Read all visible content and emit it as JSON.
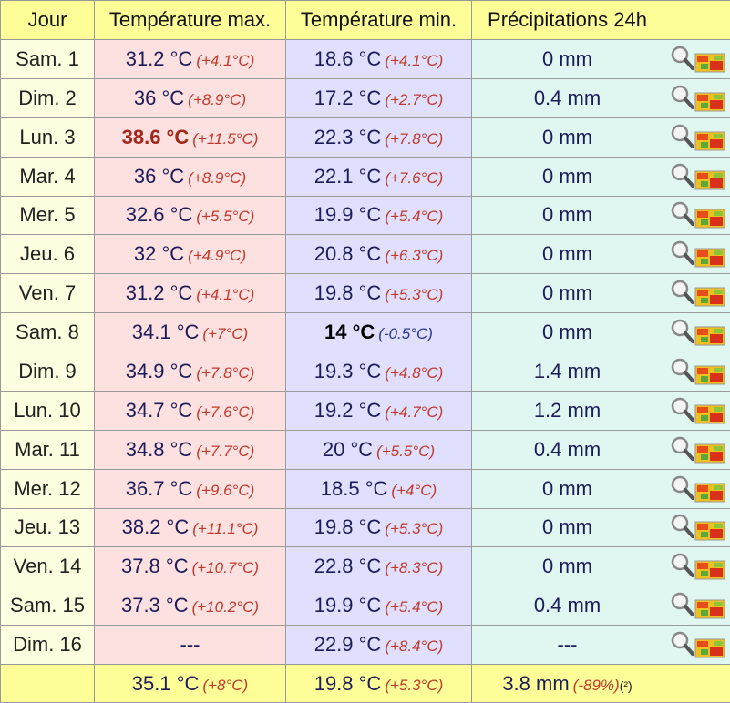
{
  "table": {
    "header": {
      "day": "Jour",
      "max": "Température max.",
      "min": "Température min.",
      "precip": "Précipitations 24h"
    },
    "rows": [
      {
        "day": "Sam. 1",
        "max": {
          "text": "31.2 °C",
          "note": "(+4.1°C)"
        },
        "min": {
          "text": "18.6 °C",
          "note": "(+4.1°C)"
        },
        "precip": "0 mm"
      },
      {
        "day": "Dim. 2",
        "max": {
          "text": "36 °C",
          "note": "(+8.9°C)"
        },
        "min": {
          "text": "17.2 °C",
          "note": "(+2.7°C)"
        },
        "precip": "0.4 mm"
      },
      {
        "day": "Lun. 3",
        "max": {
          "text": "38.6 °C",
          "note": "(+11.5°C)",
          "bold": true,
          "color": "#a3281c"
        },
        "min": {
          "text": "22.3 °C",
          "note": "(+7.8°C)"
        },
        "precip": "0 mm"
      },
      {
        "day": "Mar. 4",
        "max": {
          "text": "36 °C",
          "note": "(+8.9°C)"
        },
        "min": {
          "text": "22.1 °C",
          "note": "(+7.6°C)"
        },
        "precip": "0 mm"
      },
      {
        "day": "Mer. 5",
        "max": {
          "text": "32.6 °C",
          "note": "(+5.5°C)"
        },
        "min": {
          "text": "19.9 °C",
          "note": "(+5.4°C)"
        },
        "precip": "0 mm"
      },
      {
        "day": "Jeu. 6",
        "max": {
          "text": "32 °C",
          "note": "(+4.9°C)"
        },
        "min": {
          "text": "20.8 °C",
          "note": "(+6.3°C)"
        },
        "precip": "0 mm"
      },
      {
        "day": "Ven. 7",
        "max": {
          "text": "31.2 °C",
          "note": "(+4.1°C)"
        },
        "min": {
          "text": "19.8 °C",
          "note": "(+5.3°C)"
        },
        "precip": "0 mm"
      },
      {
        "day": "Sam. 8",
        "max": {
          "text": "34.1 °C",
          "note": "(+7°C)"
        },
        "min": {
          "text": "14 °C",
          "note": "(-0.5°C)",
          "bold": true,
          "color": "#000000",
          "note_color": "#2b3590"
        },
        "precip": "0 mm"
      },
      {
        "day": "Dim. 9",
        "max": {
          "text": "34.9 °C",
          "note": "(+7.8°C)"
        },
        "min": {
          "text": "19.3 °C",
          "note": "(+4.8°C)"
        },
        "precip": "1.4 mm"
      },
      {
        "day": "Lun. 10",
        "max": {
          "text": "34.7 °C",
          "note": "(+7.6°C)"
        },
        "min": {
          "text": "19.2 °C",
          "note": "(+4.7°C)"
        },
        "precip": "1.2 mm"
      },
      {
        "day": "Mar. 11",
        "max": {
          "text": "34.8 °C",
          "note": "(+7.7°C)"
        },
        "min": {
          "text": "20 °C",
          "note": "(+5.5°C)"
        },
        "precip": "0.4 mm"
      },
      {
        "day": "Mer. 12",
        "max": {
          "text": "36.7 °C",
          "note": "(+9.6°C)"
        },
        "min": {
          "text": "18.5 °C",
          "note": "(+4°C)"
        },
        "precip": "0 mm"
      },
      {
        "day": "Jeu. 13",
        "max": {
          "text": "38.2 °C",
          "note": "(+11.1°C)"
        },
        "min": {
          "text": "19.8 °C",
          "note": "(+5.3°C)"
        },
        "precip": "0 mm"
      },
      {
        "day": "Ven. 14",
        "max": {
          "text": "37.8 °C",
          "note": "(+10.7°C)"
        },
        "min": {
          "text": "22.8 °C",
          "note": "(+8.3°C)"
        },
        "precip": "0 mm"
      },
      {
        "day": "Sam. 15",
        "max": {
          "text": "37.3 °C",
          "note": "(+10.2°C)"
        },
        "min": {
          "text": "19.9 °C",
          "note": "(+5.4°C)"
        },
        "precip": "0.4 mm"
      },
      {
        "day": "Dim. 16",
        "max": {
          "text": "---"
        },
        "min": {
          "text": "22.9 °C",
          "note": "(+8.4°C)"
        },
        "precip": "---"
      }
    ],
    "footer": {
      "max": {
        "text": "35.1 °C",
        "note": "(+8°C)"
      },
      "min": {
        "text": "19.8 °C",
        "note": "(+5.3°C)"
      },
      "precip": {
        "text": "3.8 mm",
        "note": "(-89%)",
        "ref": "(²)"
      }
    }
  }
}
